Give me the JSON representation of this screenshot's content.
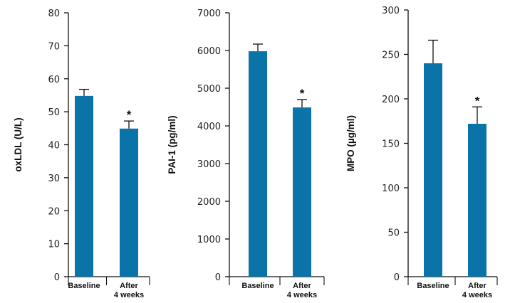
{
  "colors": {
    "bar": "#0a74a8",
    "axis": "#111111",
    "text": "#222222"
  },
  "chart_data": [
    {
      "type": "bar",
      "categories": [
        "Baseline",
        "After\n4 weeks"
      ],
      "values": [
        54.8,
        44.9
      ],
      "error_upper": [
        56.8,
        47.2
      ],
      "annotations": [
        "",
        "*"
      ],
      "ylabel": "oxLDL (U/L)",
      "ylim": [
        0,
        80
      ],
      "yticks": [
        0,
        10,
        20,
        30,
        40,
        50,
        60,
        70,
        80
      ],
      "xlabel": "",
      "grid": false
    },
    {
      "type": "bar",
      "categories": [
        "Baseline",
        "After\n4 weeks"
      ],
      "values": [
        5980,
        4490
      ],
      "error_upper": [
        6170,
        4700
      ],
      "annotations": [
        "",
        "*"
      ],
      "ylabel": "PAI-1 (pg/ml)",
      "ylim": [
        0,
        7000
      ],
      "yticks": [
        0,
        1000,
        2000,
        3000,
        4000,
        5000,
        6000,
        7000
      ],
      "xlabel": "",
      "grid": false
    },
    {
      "type": "bar",
      "categories": [
        "Baseline",
        "After\n4 weeks"
      ],
      "values": [
        240,
        172
      ],
      "error_upper": [
        266,
        191
      ],
      "annotations": [
        "",
        "*"
      ],
      "ylabel": "MPO (µg/ml)",
      "ylim": [
        0,
        300
      ],
      "yticks": [
        0,
        50,
        100,
        150,
        200,
        250,
        300
      ],
      "xlabel": "",
      "grid": false
    }
  ]
}
